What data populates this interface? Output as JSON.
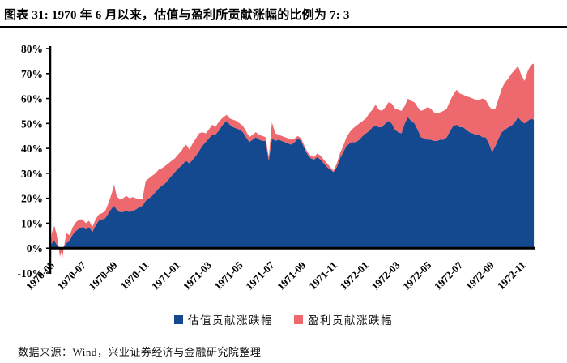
{
  "header": {
    "title": "图表 31: 1970 年 6 月以来，估值与盈利所贡献涨幅的比例为 7: 3"
  },
  "footer": {
    "source": "数据来源：Wind，兴业证券经济与金融研究院整理"
  },
  "chart_data": {
    "type": "area",
    "stacked": true,
    "title": "图表 31: 1970 年 6 月以来，估值与盈利所贡献涨幅的比例为 7: 3",
    "grid": false,
    "legend_position": "bottom",
    "x_unit": "months since 1970-05",
    "xlim": [
      0,
      30.9
    ],
    "ylim": [
      -10,
      80
    ],
    "x_tick_positions": [
      0,
      2,
      4,
      6,
      8,
      10,
      12,
      14,
      16,
      18,
      20,
      22,
      24,
      26,
      28,
      30
    ],
    "x_tick_labels": [
      "1970-05",
      "1970-07",
      "1970-09",
      "1970-11",
      "1971-01",
      "1971-03",
      "1971-05",
      "1971-07",
      "1971-09",
      "1971-11",
      "1972-01",
      "1972-03",
      "1972-05",
      "1972-07",
      "1972-09",
      "1972-11"
    ],
    "y_tick_values": [
      -10,
      0,
      10,
      20,
      30,
      40,
      50,
      60,
      70,
      80
    ],
    "y_tick_labels": [
      "-10%",
      "0%",
      "10%",
      "20%",
      "30%",
      "40%",
      "50%",
      "60%",
      "70%",
      "80%"
    ],
    "series": [
      {
        "name": "估值贡献涨跌幅",
        "color": "#14498F"
      },
      {
        "name": "盈利贡献涨跌幅",
        "color": "#EE696D"
      }
    ],
    "points_format": [
      "x_months",
      "valuation_pct",
      "earnings_pct"
    ],
    "points": [
      [
        0.0,
        0,
        0
      ],
      [
        0.1,
        2,
        4
      ],
      [
        0.26,
        3,
        6
      ],
      [
        0.41,
        1.5,
        4
      ],
      [
        0.5,
        0.8,
        1.2
      ],
      [
        0.62,
        0.3,
        -3.8
      ],
      [
        0.7,
        0.2,
        -1.7
      ],
      [
        0.77,
        0.2,
        -4.7
      ],
      [
        0.85,
        0.6,
        -1.1
      ],
      [
        0.93,
        1.2,
        1.3
      ],
      [
        1.03,
        2,
        4
      ],
      [
        1.24,
        3,
        2.2
      ],
      [
        1.44,
        5.5,
        3
      ],
      [
        1.65,
        7,
        3.5
      ],
      [
        1.86,
        8,
        3.5
      ],
      [
        2.06,
        8.5,
        3
      ],
      [
        2.27,
        7.5,
        2.5
      ],
      [
        2.47,
        8.5,
        2.5
      ],
      [
        2.68,
        6.5,
        2
      ],
      [
        2.89,
        9,
        2.5
      ],
      [
        3.09,
        11,
        2.5
      ],
      [
        3.3,
        11.5,
        2.5
      ],
      [
        3.51,
        12,
        3
      ],
      [
        3.71,
        14,
        4
      ],
      [
        3.92,
        16,
        6
      ],
      [
        4.07,
        17,
        8.5
      ],
      [
        4.23,
        15.5,
        5.5
      ],
      [
        4.43,
        14.5,
        5
      ],
      [
        4.64,
        14.5,
        5.5
      ],
      [
        4.85,
        15,
        6
      ],
      [
        5.05,
        14.5,
        5.5
      ],
      [
        5.26,
        15,
        5.5
      ],
      [
        5.46,
        15.5,
        4.5
      ],
      [
        5.67,
        16.5,
        3
      ],
      [
        5.88,
        17,
        3
      ],
      [
        6.08,
        19,
        8
      ],
      [
        6.29,
        20,
        8
      ],
      [
        6.49,
        21,
        8
      ],
      [
        6.7,
        22.5,
        7.5
      ],
      [
        6.91,
        24,
        7.5
      ],
      [
        7.11,
        25,
        7
      ],
      [
        7.32,
        26,
        7
      ],
      [
        7.53,
        27.5,
        6.5
      ],
      [
        7.73,
        29,
        6
      ],
      [
        7.94,
        30.5,
        5.5
      ],
      [
        8.14,
        32,
        5.5
      ],
      [
        8.35,
        33,
        6
      ],
      [
        8.56,
        34.5,
        6.5
      ],
      [
        8.66,
        35,
        6.5
      ],
      [
        8.87,
        34,
        5.5
      ],
      [
        9.07,
        35.5,
        6.5
      ],
      [
        9.28,
        37,
        7
      ],
      [
        9.48,
        39,
        7
      ],
      [
        9.69,
        41,
        5.5
      ],
      [
        9.9,
        42.5,
        3.5
      ],
      [
        10.1,
        44,
        3.5
      ],
      [
        10.31,
        45.5,
        4
      ],
      [
        10.52,
        45.5,
        3
      ],
      [
        10.72,
        47,
        3.5
      ],
      [
        10.93,
        49,
        3
      ],
      [
        11.13,
        50.5,
        2.5
      ],
      [
        11.24,
        51,
        2.5
      ],
      [
        11.44,
        49.5,
        2.5
      ],
      [
        11.65,
        48.5,
        3
      ],
      [
        11.86,
        48,
        3
      ],
      [
        12.06,
        47.5,
        2.5
      ],
      [
        12.27,
        46.5,
        2.5
      ],
      [
        12.47,
        44.5,
        2.5
      ],
      [
        12.68,
        42.5,
        2
      ],
      [
        12.89,
        43.5,
        2
      ],
      [
        13.09,
        44.5,
        2
      ],
      [
        13.3,
        43.5,
        2
      ],
      [
        13.51,
        43,
        2
      ],
      [
        13.71,
        43,
        1.5
      ],
      [
        13.92,
        35,
        1.5
      ],
      [
        14.12,
        44,
        6.5
      ],
      [
        14.33,
        43,
        3
      ],
      [
        14.54,
        43.5,
        2
      ],
      [
        14.74,
        43,
        2
      ],
      [
        14.95,
        42.5,
        2
      ],
      [
        15.15,
        42,
        2
      ],
      [
        15.36,
        41.5,
        2
      ],
      [
        15.57,
        42.5,
        1.5
      ],
      [
        15.77,
        44,
        1
      ],
      [
        15.98,
        43,
        1
      ],
      [
        16.19,
        40,
        1
      ],
      [
        16.39,
        37.5,
        1
      ],
      [
        16.6,
        36,
        1
      ],
      [
        16.8,
        35.5,
        1
      ],
      [
        17.01,
        36.5,
        1.5
      ],
      [
        17.22,
        35.5,
        1.5
      ],
      [
        17.42,
        34,
        1.5
      ],
      [
        17.63,
        32.5,
        1.5
      ],
      [
        17.84,
        31.5,
        1
      ],
      [
        18.04,
        30.5,
        0.5
      ],
      [
        18.25,
        32.5,
        1.5
      ],
      [
        18.45,
        36,
        2
      ],
      [
        18.66,
        38.5,
        2.5
      ],
      [
        18.87,
        41,
        3.5
      ],
      [
        19.07,
        42,
        4.5
      ],
      [
        19.28,
        42.5,
        5.5
      ],
      [
        19.48,
        42.5,
        6.5
      ],
      [
        19.69,
        43.5,
        6.5
      ],
      [
        19.9,
        45,
        6
      ],
      [
        20.1,
        46,
        6
      ],
      [
        20.31,
        47,
        7
      ],
      [
        20.52,
        48.5,
        7
      ],
      [
        20.72,
        49,
        8.5
      ],
      [
        20.93,
        48.5,
        7
      ],
      [
        21.13,
        48.5,
        6.5
      ],
      [
        21.34,
        50,
        6.5
      ],
      [
        21.55,
        51,
        7.5
      ],
      [
        21.75,
        50,
        8
      ],
      [
        21.96,
        47.5,
        8.5
      ],
      [
        22.16,
        46.5,
        9
      ],
      [
        22.37,
        46,
        9
      ],
      [
        22.58,
        50,
        7
      ],
      [
        22.78,
        52.5,
        7.5
      ],
      [
        22.99,
        51,
        8
      ],
      [
        23.2,
        50,
        8.5
      ],
      [
        23.4,
        47.5,
        9
      ],
      [
        23.61,
        44.5,
        10.5
      ],
      [
        23.81,
        44,
        11.5
      ],
      [
        24.02,
        43.5,
        13
      ],
      [
        24.23,
        43.5,
        12.5
      ],
      [
        24.43,
        43,
        11.5
      ],
      [
        24.64,
        43,
        11
      ],
      [
        24.85,
        43.5,
        11
      ],
      [
        25.05,
        43.5,
        11.5
      ],
      [
        25.26,
        44.5,
        11.5
      ],
      [
        25.46,
        47,
        12
      ],
      [
        25.67,
        49,
        12.5
      ],
      [
        25.88,
        49.5,
        14
      ],
      [
        26.08,
        48.5,
        13.5
      ],
      [
        26.29,
        48.5,
        13
      ],
      [
        26.49,
        47.5,
        13.5
      ],
      [
        26.7,
        46.5,
        14
      ],
      [
        26.91,
        46,
        14
      ],
      [
        27.11,
        45.5,
        14
      ],
      [
        27.32,
        45.5,
        14
      ],
      [
        27.53,
        44.5,
        15.5
      ],
      [
        27.73,
        44.5,
        15
      ],
      [
        27.94,
        42,
        15
      ],
      [
        28.14,
        38.5,
        17
      ],
      [
        28.35,
        41,
        15
      ],
      [
        28.56,
        44,
        16
      ],
      [
        28.76,
        46.5,
        17.5
      ],
      [
        28.97,
        47.5,
        19
      ],
      [
        29.18,
        48.5,
        19.5
      ],
      [
        29.38,
        49,
        21
      ],
      [
        29.59,
        50.5,
        21
      ],
      [
        29.79,
        52.5,
        20.5
      ],
      [
        30.0,
        51,
        18.5
      ],
      [
        30.21,
        50,
        17
      ],
      [
        30.41,
        51,
        20
      ],
      [
        30.62,
        52,
        21.5
      ],
      [
        30.8,
        51.5,
        22.5
      ]
    ]
  }
}
